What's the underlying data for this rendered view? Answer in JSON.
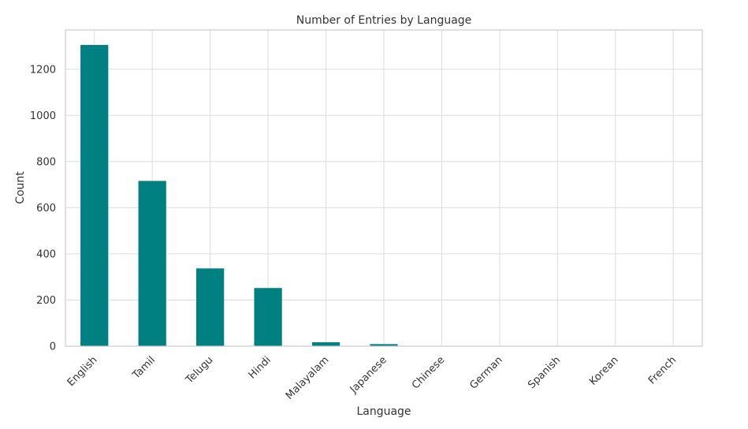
{
  "chart_data": {
    "type": "bar",
    "title": "Number of Entries by Language",
    "xlabel": "Language",
    "ylabel": "Count",
    "categories": [
      "English",
      "Tamil",
      "Telugu",
      "Hindi",
      "Malayalam",
      "Japanese",
      "Chinese",
      "German",
      "Spanish",
      "Korean",
      "French"
    ],
    "values": [
      1305,
      716,
      337,
      252,
      17,
      9,
      1,
      1,
      1,
      1,
      1
    ],
    "ylim": [
      0,
      1370
    ],
    "yticks": [
      0,
      200,
      400,
      600,
      800,
      1000,
      1200
    ],
    "grid": true,
    "bar_color": "#008080",
    "grid_color": "#dddddd",
    "spine_color": "#cccccc"
  }
}
